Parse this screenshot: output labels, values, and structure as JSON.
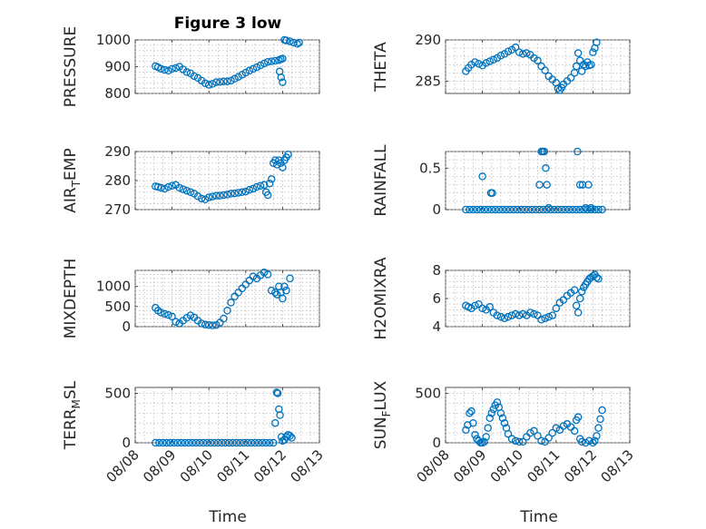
{
  "chart_data": [
    {
      "type": "scatter",
      "title": "Figure 3 low",
      "ylabel": "PRESSURE",
      "ylim": [
        800,
        1000
      ],
      "yticks": [
        800,
        900,
        1000
      ],
      "xlim": [
        "08/08",
        "08/13"
      ],
      "x": [
        8.55,
        8.62,
        8.7,
        8.8,
        8.9,
        9.0,
        9.1,
        9.2,
        9.3,
        9.4,
        9.5,
        9.6,
        9.7,
        9.8,
        9.9,
        10.0,
        10.1,
        10.2,
        10.3,
        10.4,
        10.5,
        10.6,
        10.7,
        10.8,
        10.9,
        11.0,
        11.1,
        11.2,
        11.3,
        11.4,
        11.5,
        11.6,
        11.7,
        11.8,
        11.9,
        11.95,
        12.0,
        11.92,
        11.96,
        12.0,
        12.05,
        12.1,
        12.2,
        12.3,
        12.4,
        12.45
      ],
      "y": [
        902,
        898,
        892,
        888,
        885,
        892,
        895,
        900,
        890,
        880,
        875,
        865,
        858,
        848,
        838,
        832,
        836,
        842,
        843,
        845,
        845,
        848,
        855,
        862,
        870,
        878,
        885,
        892,
        898,
        905,
        912,
        918,
        920,
        922,
        924,
        928,
        930,
        882,
        860,
        842,
        1000,
        998,
        995,
        990,
        985,
        990
      ]
    },
    {
      "type": "scatter",
      "ylabel": "THETA",
      "ylim": [
        283.5,
        290
      ],
      "yticks": [
        285,
        290
      ],
      "xlim": [
        "08/08",
        "08/13"
      ],
      "x": [
        8.55,
        8.62,
        8.7,
        8.8,
        8.9,
        9.0,
        9.1,
        9.2,
        9.3,
        9.4,
        9.5,
        9.6,
        9.7,
        9.8,
        9.9,
        10.0,
        10.1,
        10.2,
        10.3,
        10.4,
        10.5,
        10.6,
        10.7,
        10.8,
        10.9,
        11.0,
        11.05,
        11.1,
        11.15,
        11.2,
        11.3,
        11.4,
        11.5,
        11.55,
        11.6,
        11.65,
        11.7,
        11.75,
        11.8,
        11.85,
        11.9,
        11.95,
        12.0,
        12.05,
        12.1
      ],
      "y": [
        286.2,
        286.6,
        287.0,
        287.3,
        287.1,
        286.9,
        287.2,
        287.4,
        287.6,
        287.8,
        288.1,
        288.3,
        288.6,
        288.8,
        289.1,
        288.5,
        288.3,
        288.4,
        288.2,
        287.8,
        287.5,
        286.8,
        286.3,
        285.6,
        285.2,
        284.8,
        284.1,
        283.9,
        284.2,
        284.6,
        285.0,
        285.4,
        286.0,
        286.8,
        288.4,
        287.5,
        286.2,
        287.0,
        286.8,
        287.3,
        286.9,
        287.0,
        288.5,
        289.0,
        289.7
      ]
    },
    {
      "type": "scatter",
      "ylabel": "AIR_T_EMP",
      "ylim": [
        270,
        290
      ],
      "yticks": [
        270,
        280,
        290
      ],
      "xlim": [
        "08/08",
        "08/13"
      ],
      "x": [
        8.55,
        8.62,
        8.7,
        8.8,
        8.9,
        9.0,
        9.1,
        9.2,
        9.3,
        9.4,
        9.5,
        9.6,
        9.7,
        9.8,
        9.9,
        10.0,
        10.1,
        10.2,
        10.3,
        10.4,
        10.5,
        10.6,
        10.7,
        10.8,
        10.9,
        11.0,
        11.1,
        11.2,
        11.3,
        11.4,
        11.5,
        11.55,
        11.6,
        11.65,
        11.7,
        11.75,
        11.8,
        11.85,
        11.9,
        11.95,
        12.0,
        12.05,
        12.1,
        12.15
      ],
      "y": [
        278.0,
        277.8,
        277.5,
        277.2,
        277.8,
        278.2,
        278.5,
        277.5,
        277.0,
        276.5,
        276.0,
        275.5,
        274.6,
        273.8,
        273.5,
        274.2,
        274.5,
        274.8,
        274.8,
        275.0,
        275.2,
        275.5,
        275.6,
        275.8,
        276.0,
        276.2,
        276.8,
        277.2,
        277.8,
        278.2,
        278.5,
        276.0,
        275.0,
        279.0,
        280.5,
        286.0,
        287.0,
        285.5,
        287.0,
        286.0,
        284.5,
        287.0,
        288.0,
        289.0
      ]
    },
    {
      "type": "scatter",
      "ylabel": "RAINFALL",
      "ylim": [
        0,
        0.7
      ],
      "yticks": [
        0,
        0.5
      ],
      "xlim": [
        "08/08",
        "08/13"
      ],
      "x": [
        8.55,
        8.65,
        8.75,
        8.85,
        8.95,
        9.05,
        9.15,
        9.25,
        9.35,
        9.45,
        9.55,
        9.65,
        9.75,
        9.85,
        9.95,
        10.05,
        10.15,
        10.25,
        10.35,
        10.45,
        10.55,
        10.65,
        10.75,
        10.85,
        10.95,
        11.05,
        11.15,
        11.25,
        11.35,
        11.45,
        11.55,
        11.65,
        11.75,
        11.85,
        11.95,
        12.05,
        12.15,
        12.25,
        9.0,
        9.23,
        9.27,
        10.55,
        10.6,
        10.64,
        10.68,
        10.72,
        10.75,
        10.8,
        11.58,
        11.65,
        11.72,
        11.8,
        11.88,
        11.95
      ],
      "y": [
        0,
        0,
        0,
        0,
        0,
        0,
        0,
        0,
        0,
        0,
        0,
        0,
        0,
        0,
        0,
        0,
        0,
        0,
        0,
        0,
        0,
        0,
        0,
        0,
        0,
        0,
        0,
        0,
        0,
        0,
        0,
        0,
        0,
        0,
        0,
        0,
        0,
        0,
        0.4,
        0.2,
        0.2,
        0.3,
        0.7,
        0.7,
        0.7,
        0.5,
        0.3,
        0.02,
        0.7,
        0.3,
        0.3,
        0.02,
        0.3,
        0.02
      ]
    },
    {
      "type": "scatter",
      "ylabel": "MIXDEPTH",
      "ylim": [
        0,
        1400
      ],
      "yticks": [
        0,
        500,
        1000
      ],
      "xlim": [
        "08/08",
        "08/13"
      ],
      "x": [
        8.55,
        8.62,
        8.7,
        8.8,
        8.9,
        9.0,
        9.1,
        9.2,
        9.3,
        9.4,
        9.5,
        9.6,
        9.7,
        9.8,
        9.9,
        10.0,
        10.1,
        10.2,
        10.3,
        10.4,
        10.5,
        10.6,
        10.7,
        10.8,
        10.9,
        11.0,
        11.1,
        11.2,
        11.3,
        11.4,
        11.5,
        11.6,
        11.7,
        11.8,
        11.85,
        11.9,
        11.95,
        12.0,
        12.05,
        12.1,
        12.2
      ],
      "y": [
        470,
        400,
        350,
        320,
        290,
        250,
        120,
        80,
        150,
        220,
        280,
        230,
        150,
        80,
        50,
        40,
        30,
        40,
        100,
        200,
        400,
        600,
        750,
        850,
        950,
        1050,
        1150,
        1250,
        1200,
        1280,
        1350,
        1300,
        900,
        850,
        800,
        1000,
        850,
        700,
        1000,
        900,
        1200
      ]
    },
    {
      "type": "scatter",
      "ylabel": "H2OMIXRA",
      "ylim": [
        4,
        8
      ],
      "yticks": [
        4,
        6,
        8
      ],
      "xlim": [
        "08/08",
        "08/13"
      ],
      "x": [
        8.55,
        8.62,
        8.7,
        8.8,
        8.9,
        9.0,
        9.1,
        9.2,
        9.3,
        9.4,
        9.5,
        9.6,
        9.7,
        9.8,
        9.9,
        10.0,
        10.1,
        10.2,
        10.3,
        10.4,
        10.5,
        10.6,
        10.7,
        10.8,
        10.9,
        11.0,
        11.1,
        11.2,
        11.3,
        11.4,
        11.5,
        11.55,
        11.6,
        11.65,
        11.7,
        11.75,
        11.8,
        11.85,
        11.9,
        11.95,
        12.0,
        12.05,
        12.1,
        12.15
      ],
      "y": [
        5.5,
        5.4,
        5.3,
        5.5,
        5.6,
        5.3,
        5.2,
        5.4,
        5.0,
        4.8,
        4.7,
        4.6,
        4.7,
        4.8,
        4.9,
        4.8,
        4.9,
        4.8,
        5.0,
        4.9,
        4.8,
        4.5,
        4.6,
        4.7,
        4.8,
        5.3,
        5.7,
        5.9,
        6.2,
        6.4,
        6.6,
        5.5,
        5.0,
        6.0,
        6.5,
        6.8,
        7.0,
        7.2,
        7.4,
        7.5,
        7.6,
        7.7,
        7.5,
        7.4
      ]
    },
    {
      "type": "scatter",
      "ylabel": "TERR_M_SL",
      "ylim": [
        0,
        560
      ],
      "yticks": [
        0,
        500
      ],
      "xlim": [
        "08/08",
        "08/13"
      ],
      "x": [
        8.55,
        8.65,
        8.75,
        8.85,
        8.95,
        9.05,
        9.15,
        9.25,
        9.35,
        9.45,
        9.55,
        9.65,
        9.75,
        9.85,
        9.95,
        10.05,
        10.15,
        10.25,
        10.35,
        10.45,
        10.55,
        10.65,
        10.75,
        10.85,
        10.95,
        11.05,
        11.15,
        11.25,
        11.35,
        11.45,
        11.55,
        11.65,
        11.75,
        11.8,
        11.84,
        11.87,
        11.9,
        11.93,
        11.97,
        12.0,
        12.05,
        12.1,
        12.15,
        12.2,
        12.25
      ],
      "y": [
        0,
        0,
        0,
        0,
        0,
        0,
        0,
        0,
        0,
        0,
        0,
        0,
        0,
        0,
        0,
        0,
        0,
        0,
        0,
        0,
        0,
        0,
        0,
        0,
        0,
        0,
        0,
        0,
        0,
        0,
        0,
        0,
        0,
        200,
        510,
        500,
        340,
        280,
        60,
        20,
        30,
        60,
        80,
        70,
        50
      ]
    },
    {
      "type": "scatter",
      "ylabel": "SUN_F_LUX",
      "ylim": [
        0,
        560
      ],
      "yticks": [
        0,
        500
      ],
      "xlim": [
        "08/08",
        "08/13"
      ],
      "x": [
        8.55,
        8.6,
        8.65,
        8.7,
        8.75,
        8.8,
        8.85,
        8.9,
        8.95,
        9.0,
        9.05,
        9.1,
        9.15,
        9.2,
        9.25,
        9.3,
        9.35,
        9.4,
        9.45,
        9.5,
        9.55,
        9.6,
        9.65,
        9.7,
        9.8,
        9.9,
        10.0,
        10.1,
        10.2,
        10.3,
        10.4,
        10.5,
        10.6,
        10.7,
        10.8,
        10.9,
        11.0,
        11.1,
        11.2,
        11.3,
        11.4,
        11.5,
        11.55,
        11.6,
        11.65,
        11.7,
        11.8,
        11.9,
        12.0,
        12.05,
        12.1,
        12.15,
        12.2,
        12.25
      ],
      "y": [
        130,
        180,
        300,
        320,
        200,
        80,
        40,
        20,
        0,
        0,
        10,
        60,
        150,
        250,
        300,
        340,
        380,
        410,
        360,
        300,
        250,
        200,
        150,
        90,
        40,
        20,
        10,
        10,
        60,
        100,
        120,
        70,
        20,
        10,
        50,
        100,
        150,
        130,
        170,
        190,
        160,
        120,
        230,
        260,
        40,
        10,
        0,
        20,
        0,
        20,
        70,
        150,
        240,
        330
      ]
    }
  ],
  "labels": {
    "title": "Figure 3 low",
    "xlabel": "Time",
    "xticks": [
      "08/08",
      "08/09",
      "08/10",
      "08/11",
      "08/12",
      "08/13"
    ],
    "ylabels": [
      {
        "main": "PRESSURE",
        "sub": "",
        "rest": ""
      },
      {
        "main": "THETA",
        "sub": "",
        "rest": ""
      },
      {
        "main": "AIR",
        "sub": "T",
        "rest": "EMP"
      },
      {
        "main": "RAINFALL",
        "sub": "",
        "rest": ""
      },
      {
        "main": "MIXDEPTH",
        "sub": "",
        "rest": ""
      },
      {
        "main": "H2OMIXRA",
        "sub": "",
        "rest": ""
      },
      {
        "main": "TERR",
        "sub": "M",
        "rest": "SL"
      },
      {
        "main": "SUN",
        "sub": "F",
        "rest": "LUX"
      }
    ]
  },
  "colors": {
    "series": "#0072BD",
    "axis": "#262626",
    "grid": "#b4b4b4"
  }
}
